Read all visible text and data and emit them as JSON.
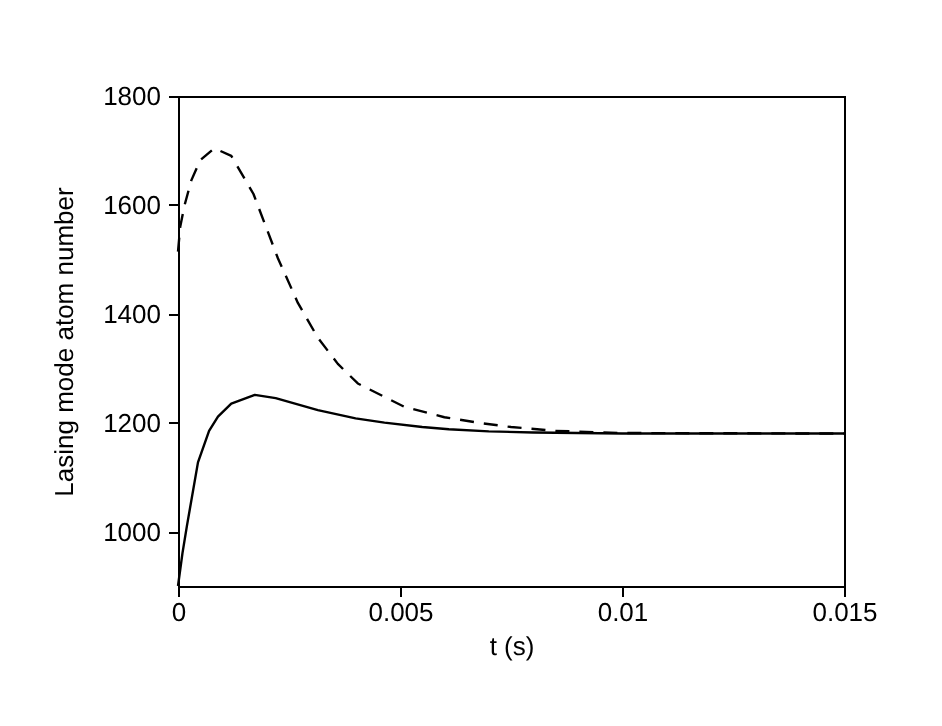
{
  "chart_data": {
    "type": "line",
    "xlabel": "t (s)",
    "ylabel": "Lasing mode atom number",
    "xlim": [
      0,
      0.015
    ],
    "xticks": [
      0,
      0.005,
      0.01,
      0.015
    ],
    "ylim": [
      900,
      1800
    ],
    "yticks": [
      1000,
      1200,
      1400,
      1600,
      1800
    ],
    "grid": false,
    "series": [
      {
        "color": "#000000",
        "line_style": "solid",
        "x": [
          0,
          0.0001,
          0.0002,
          0.00045,
          0.0007,
          0.0009,
          0.0012,
          0.00173,
          0.0022,
          0.00315,
          0.004,
          0.00465,
          0.0055,
          0.0061,
          0.007,
          0.008,
          0.01,
          0.015
        ],
        "values": [
          900,
          960,
          1010,
          1127,
          1185,
          1211,
          1235,
          1251,
          1245,
          1223,
          1208,
          1200,
          1192,
          1188,
          1184,
          1182,
          1180,
          1180
        ]
      },
      {
        "color": "#000000",
        "line_style": "dashed",
        "x": [
          0,
          5e-05,
          0.00015,
          0.0003,
          0.0005,
          0.00082,
          0.0012,
          0.0017,
          0.00225,
          0.0027,
          0.00315,
          0.0036,
          0.00405,
          0.0051,
          0.006,
          0.00675,
          0.0075,
          0.0085,
          0.01,
          0.015
        ],
        "values": [
          1514,
          1560,
          1600,
          1645,
          1682,
          1704,
          1690,
          1620,
          1502,
          1420,
          1356,
          1308,
          1272,
          1229,
          1210,
          1200,
          1192,
          1185,
          1181,
          1180
        ]
      }
    ]
  }
}
